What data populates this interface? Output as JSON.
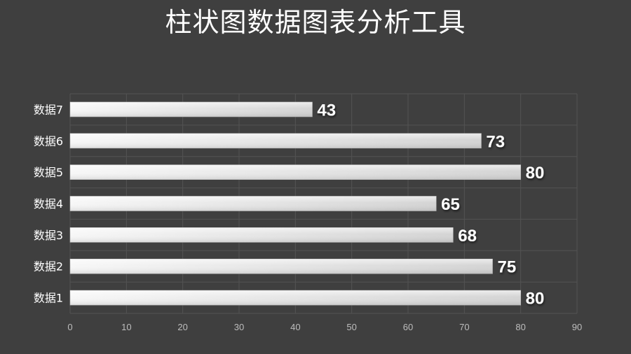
{
  "title": "柱状图数据图表分析工具",
  "chart_data": {
    "type": "bar",
    "orientation": "horizontal",
    "title": "柱状图数据图表分析工具",
    "xlabel": "",
    "ylabel": "",
    "categories": [
      "数据1",
      "数据2",
      "数据3",
      "数据4",
      "数据5",
      "数据6",
      "数据7"
    ],
    "values": [
      80,
      75,
      68,
      65,
      80,
      73,
      43
    ],
    "xlim": [
      0,
      90
    ],
    "xticks": [
      0,
      10,
      20,
      30,
      40,
      50,
      60,
      70,
      80,
      90
    ],
    "grid": true,
    "legend": "none",
    "data_labels": true,
    "colors": {
      "background": "#3f3f3f",
      "bar_light": "#f7f7f7",
      "bar_dark": "#d4d4d4",
      "grid": "#535353",
      "axis_text": "#bdbdbd",
      "category_text": "#ffffff",
      "value_text": "#ffffff"
    }
  }
}
